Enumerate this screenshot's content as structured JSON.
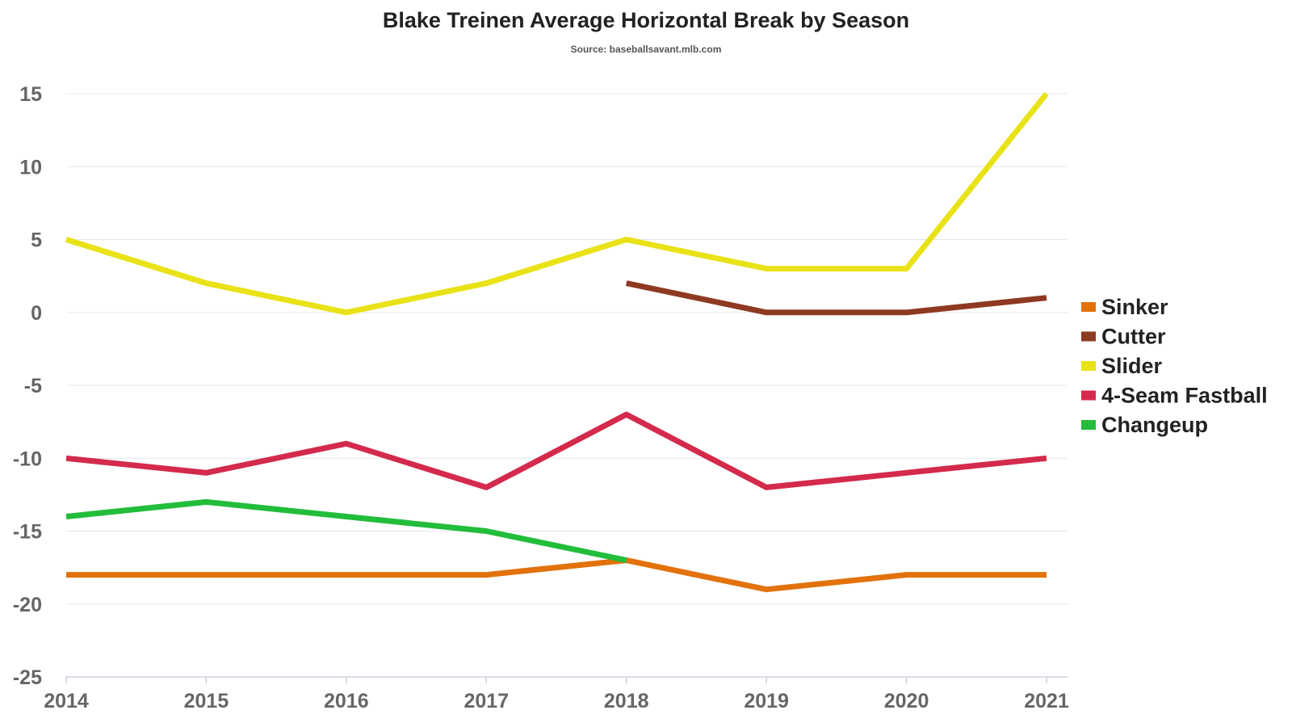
{
  "chart_data": {
    "type": "line",
    "title": "Blake Treinen Average Horizontal Break by Season",
    "subtitle": "Source: baseballsavant.mlb.com",
    "xlabel": "",
    "ylabel": "",
    "x": [
      "2014",
      "2015",
      "2016",
      "2017",
      "2018",
      "2019",
      "2020",
      "2021"
    ],
    "ylim": [
      -25,
      15
    ],
    "yticks": [
      15,
      10,
      5,
      0,
      -5,
      -10,
      -15,
      -20,
      -25
    ],
    "grid": "horizontal",
    "legend_position": "right",
    "series": [
      {
        "name": "Sinker",
        "color": "#E2720B",
        "values": [
          -18,
          -18,
          -18,
          -18,
          -17,
          -19,
          -18,
          -18
        ]
      },
      {
        "name": "Cutter",
        "color": "#8E3A22",
        "values": [
          null,
          null,
          null,
          null,
          2,
          0,
          0,
          1
        ]
      },
      {
        "name": "Slider",
        "color": "#E8E217",
        "values": [
          5,
          2,
          0,
          2,
          5,
          3,
          3,
          15
        ]
      },
      {
        "name": "4-Seam Fastball",
        "color": "#D42A4C",
        "values": [
          -10,
          -11,
          -9,
          -12,
          -7,
          -12,
          -11,
          -10
        ]
      },
      {
        "name": "Changeup",
        "color": "#22BD3A",
        "values": [
          -14,
          -13,
          -14,
          -15,
          -17,
          null,
          null,
          null
        ]
      }
    ]
  }
}
